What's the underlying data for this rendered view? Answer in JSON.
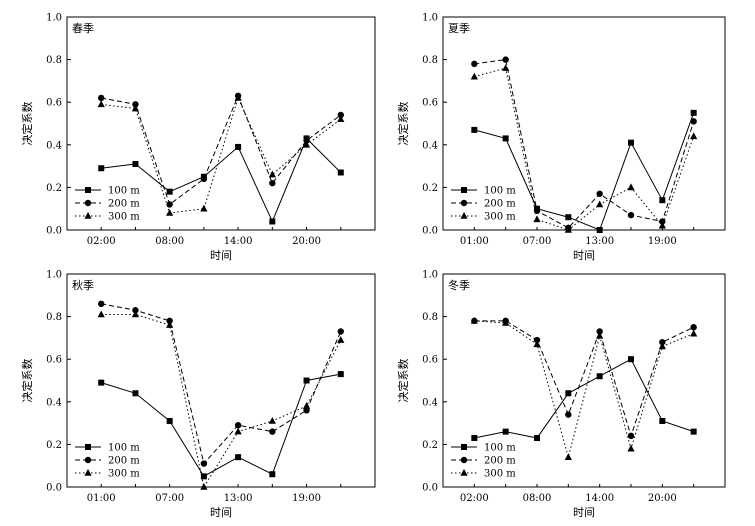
{
  "chart_data": [
    {
      "type": "line",
      "title": "春季",
      "xlabel": "时间",
      "ylabel": "决定系数",
      "ylim": [
        0,
        1.0
      ],
      "yticks": [
        "0.0",
        "0.2",
        "0.4",
        "0.6",
        "0.8",
        "1.0"
      ],
      "xticks": [
        "02:00",
        "08:00",
        "14:00",
        "20:00"
      ],
      "xtick_positions": [
        1,
        3,
        5,
        7
      ],
      "x": [
        1,
        2,
        3,
        4,
        5,
        6,
        7,
        8
      ],
      "series": [
        {
          "name": "100  m",
          "marker": "square",
          "dash": "solid",
          "values": [
            0.29,
            0.31,
            0.18,
            0.25,
            0.39,
            0.04,
            0.43,
            0.27
          ]
        },
        {
          "name": "200  m",
          "marker": "circle",
          "dash": "dashed",
          "values": [
            0.62,
            0.59,
            0.12,
            0.24,
            0.63,
            0.22,
            0.42,
            0.54
          ]
        },
        {
          "name": "300  m",
          "marker": "triangle",
          "dash": "dotted",
          "values": [
            0.59,
            0.57,
            0.08,
            0.1,
            0.62,
            0.26,
            0.4,
            0.52
          ]
        }
      ],
      "legend": "bottom-left"
    },
    {
      "type": "line",
      "title": "夏季",
      "xlabel": "时间",
      "ylabel": "决定系数",
      "ylim": [
        0,
        1.0
      ],
      "yticks": [
        "0.0",
        "0.2",
        "0.4",
        "0.6",
        "0.8",
        "1.0"
      ],
      "xticks": [
        "01:00",
        "07:00",
        "13:00",
        "19:00"
      ],
      "xtick_positions": [
        1,
        3,
        5,
        7
      ],
      "x": [
        1,
        2,
        3,
        4,
        5,
        6,
        7,
        8
      ],
      "series": [
        {
          "name": "100  m",
          "marker": "square",
          "dash": "solid",
          "values": [
            0.47,
            0.43,
            0.1,
            0.06,
            0.0,
            0.41,
            0.14,
            0.55
          ]
        },
        {
          "name": "200  m",
          "marker": "circle",
          "dash": "dashed",
          "values": [
            0.78,
            0.8,
            0.09,
            0.01,
            0.17,
            0.07,
            0.04,
            0.51
          ]
        },
        {
          "name": "300  m",
          "marker": "triangle",
          "dash": "dotted",
          "values": [
            0.72,
            0.76,
            0.05,
            0.0,
            0.12,
            0.2,
            0.02,
            0.44
          ]
        }
      ],
      "legend": "bottom-left"
    },
    {
      "type": "line",
      "title": "秋季",
      "xlabel": "时间",
      "ylabel": "决定系数",
      "ylim": [
        0,
        1.0
      ],
      "yticks": [
        "0.0",
        "0.2",
        "0.4",
        "0.6",
        "0.8",
        "1.0"
      ],
      "xticks": [
        "01:00",
        "07:00",
        "13:00",
        "19:00"
      ],
      "xtick_positions": [
        1,
        3,
        5,
        7
      ],
      "x": [
        1,
        2,
        3,
        4,
        5,
        6,
        7,
        8
      ],
      "series": [
        {
          "name": "100  m",
          "marker": "square",
          "dash": "solid",
          "values": [
            0.49,
            0.44,
            0.31,
            0.05,
            0.14,
            0.06,
            0.5,
            0.53
          ]
        },
        {
          "name": "200  m",
          "marker": "circle",
          "dash": "dashed",
          "values": [
            0.86,
            0.83,
            0.78,
            0.11,
            0.29,
            0.26,
            0.36,
            0.73
          ]
        },
        {
          "name": "300  m",
          "marker": "triangle",
          "dash": "dotted",
          "values": [
            0.81,
            0.81,
            0.76,
            0.0,
            0.26,
            0.31,
            0.38,
            0.69
          ]
        }
      ],
      "legend": "bottom-left"
    },
    {
      "type": "line",
      "title": "冬季",
      "xlabel": "时间",
      "ylabel": "决定系数",
      "ylim": [
        0,
        1.0
      ],
      "yticks": [
        "0.0",
        "0.2",
        "0.4",
        "0.6",
        "0.8",
        "1.0"
      ],
      "xticks": [
        "02:00",
        "08:00",
        "14:00",
        "20:00"
      ],
      "xtick_positions": [
        1,
        3,
        5,
        7
      ],
      "x": [
        1,
        2,
        3,
        4,
        5,
        6,
        7,
        8
      ],
      "series": [
        {
          "name": "100  m",
          "marker": "square",
          "dash": "solid",
          "values": [
            0.23,
            0.26,
            0.23,
            0.44,
            0.52,
            0.6,
            0.31,
            0.26
          ]
        },
        {
          "name": "200  m",
          "marker": "circle",
          "dash": "dashed",
          "values": [
            0.78,
            0.78,
            0.69,
            0.34,
            0.73,
            0.24,
            0.68,
            0.75
          ]
        },
        {
          "name": "300  m",
          "marker": "triangle",
          "dash": "dotted",
          "values": [
            0.78,
            0.77,
            0.67,
            0.14,
            0.71,
            0.18,
            0.66,
            0.72
          ]
        }
      ],
      "legend": "bottom-left"
    }
  ]
}
